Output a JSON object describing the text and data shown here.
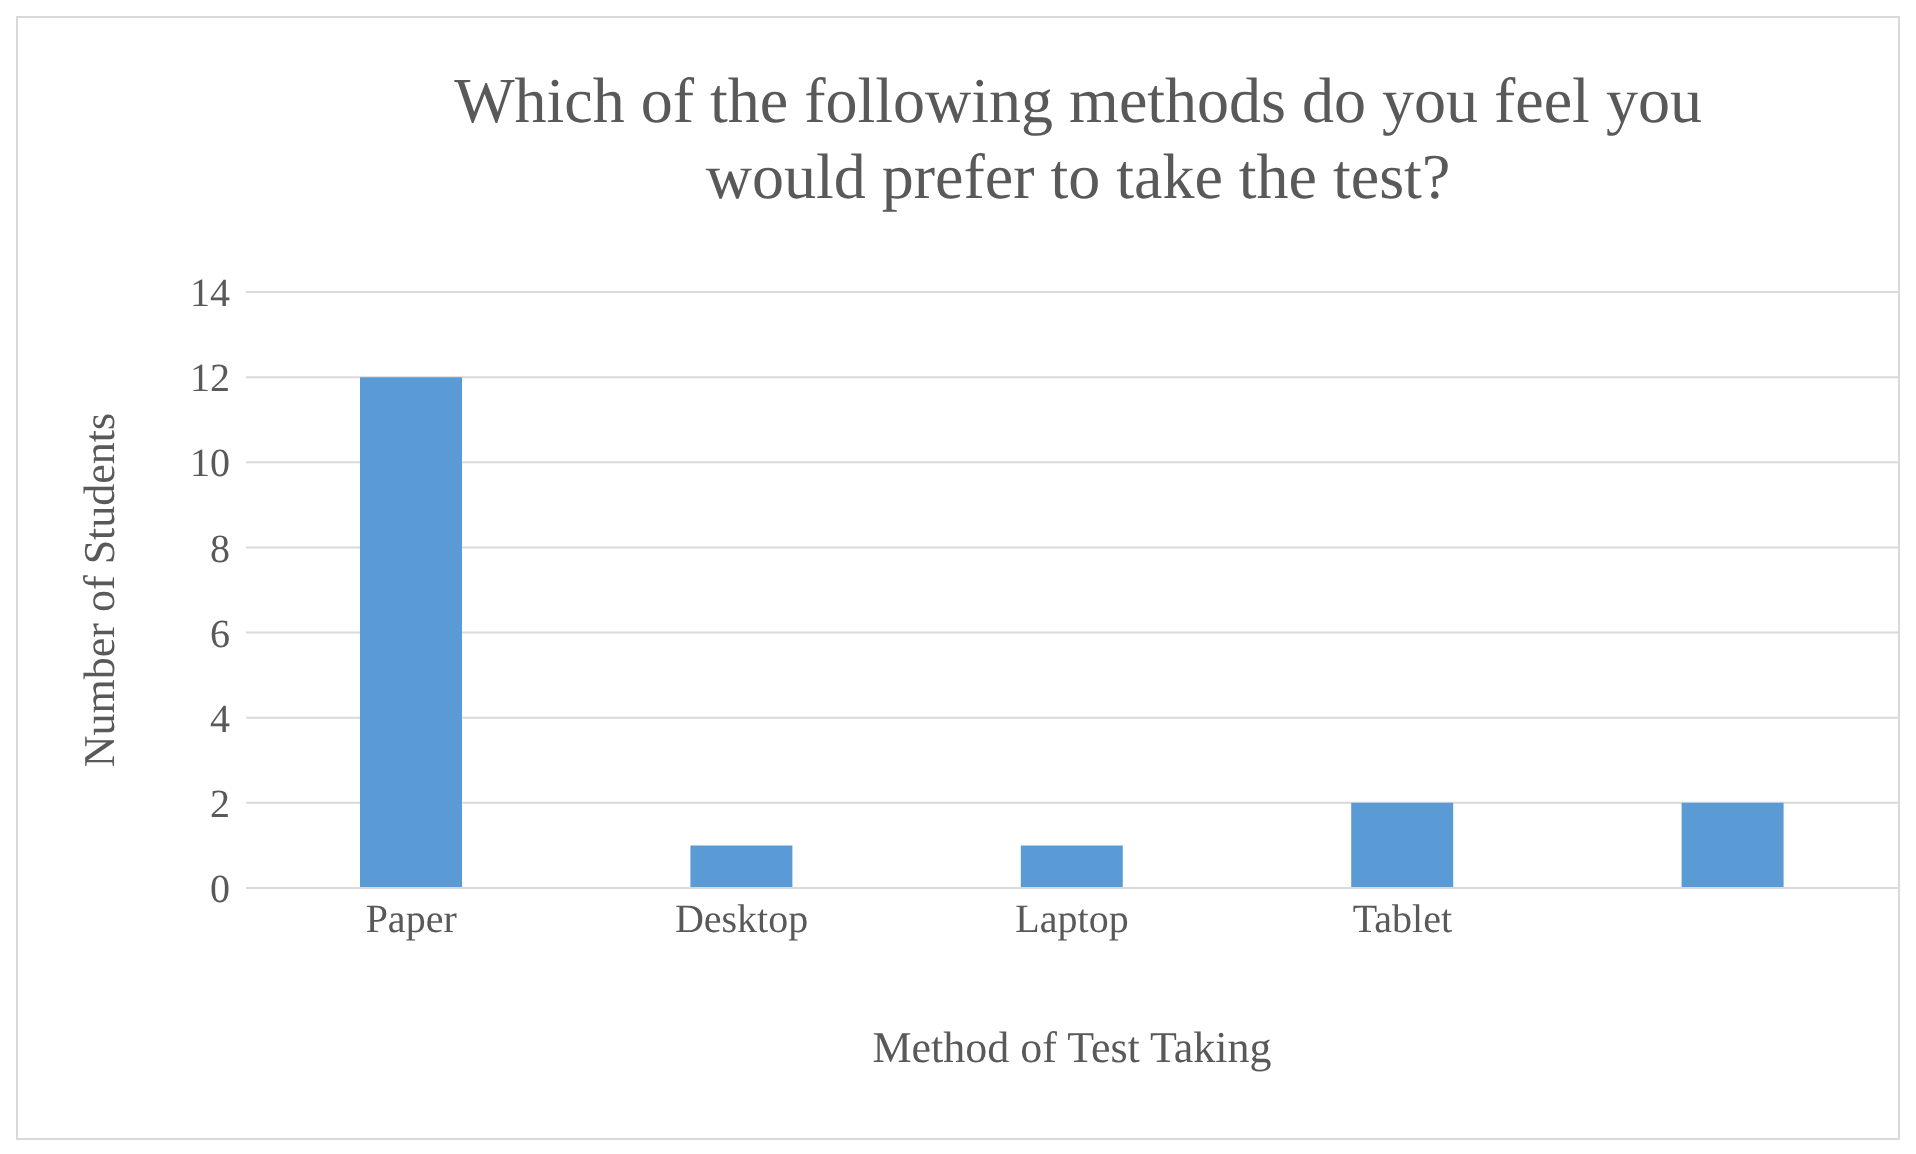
{
  "chart_data": {
    "type": "bar",
    "title": "Which of the following methods do you feel you would prefer to take the test?",
    "xlabel": "Method of Test Taking",
    "ylabel": "Number of Students",
    "categories": [
      "Paper",
      "Desktop",
      "Laptop",
      "Tablet",
      null
    ],
    "values": [
      12,
      1,
      1,
      2,
      2
    ],
    "color": "#5b9bd5",
    "ylim": [
      0,
      14
    ],
    "yticks": [
      0,
      2,
      4,
      6,
      8,
      10,
      12,
      14
    ],
    "grid": "y"
  }
}
